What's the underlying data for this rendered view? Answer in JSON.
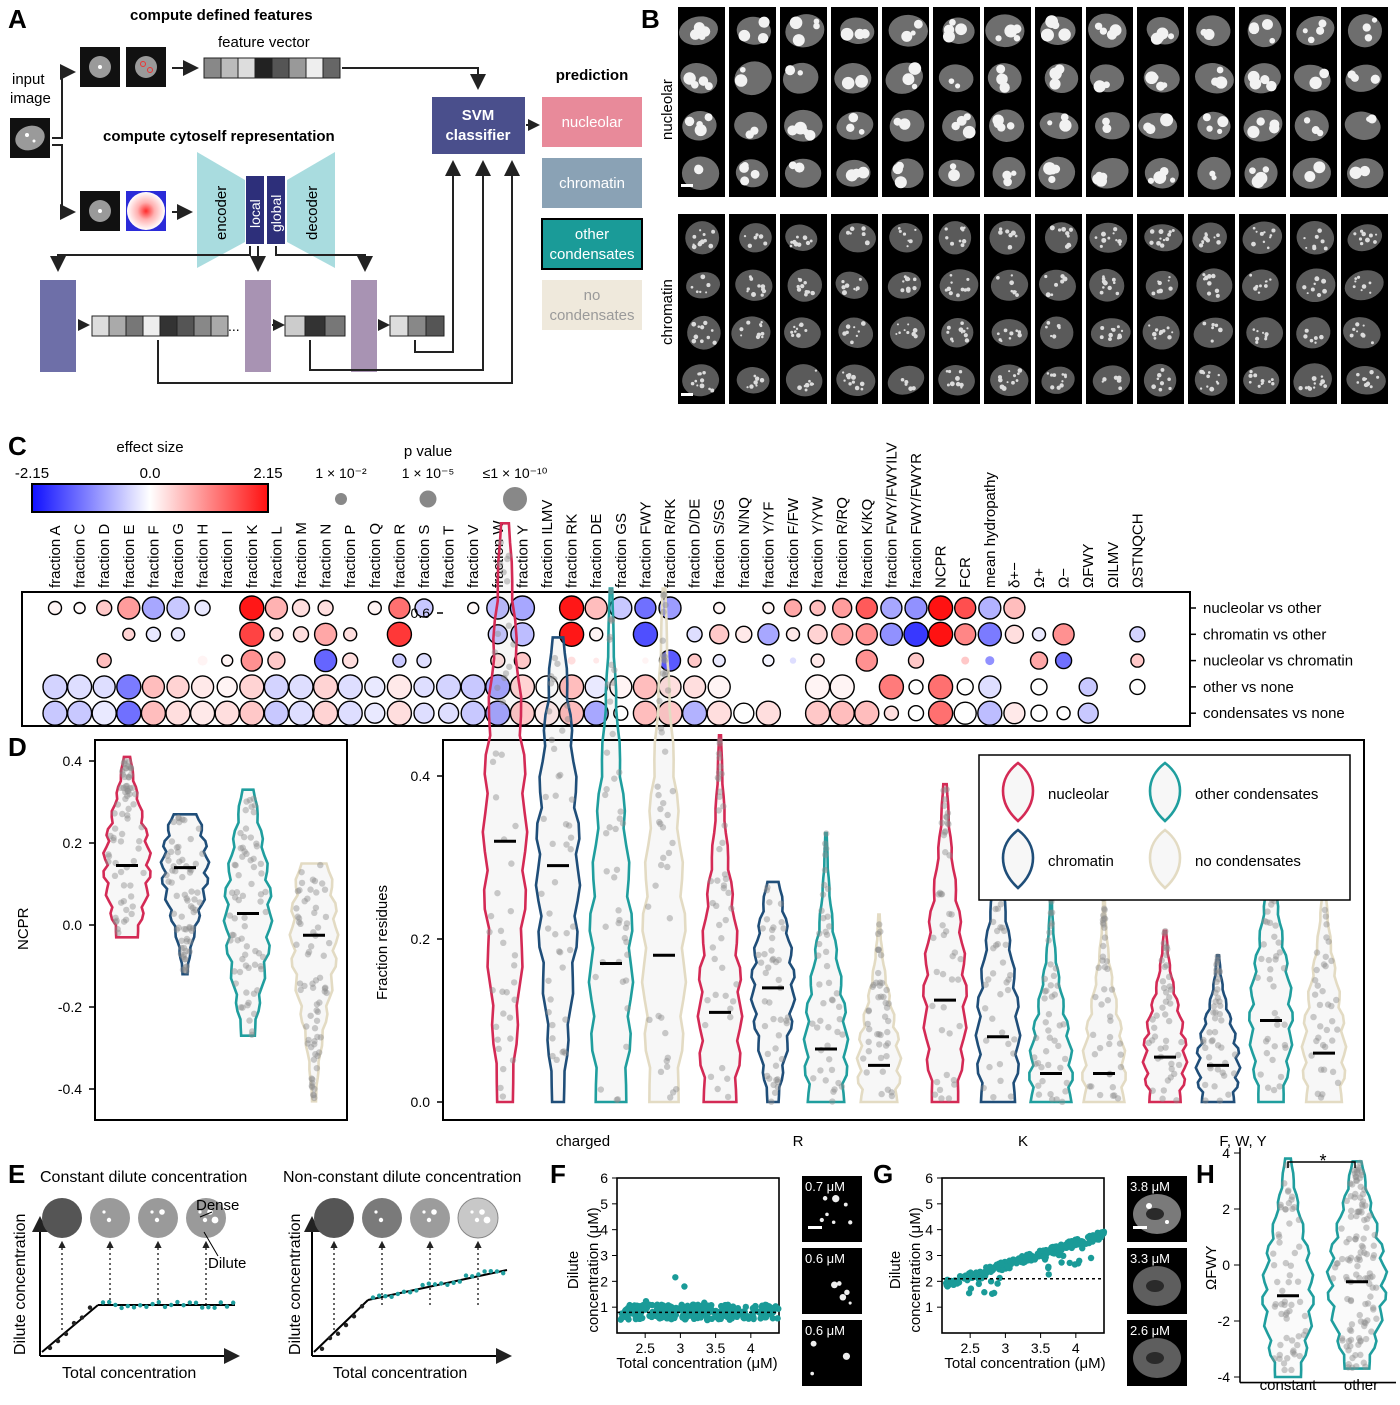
{
  "panel_labels": [
    "A",
    "B",
    "C",
    "D",
    "E",
    "F",
    "G",
    "H"
  ],
  "panelA": {
    "input_label_1": "input",
    "input_label_2": "image",
    "defined_title": "compute defined features",
    "feature_vector": "feature vector",
    "cytoself_title": "compute cytoself representation",
    "encoder": "encoder",
    "local": "local",
    "global": "global",
    "decoder": "decoder",
    "svm_1": "SVM",
    "svm_2": "classifier",
    "ellipsis": "...",
    "prediction_title": "prediction",
    "predictions": [
      {
        "label_1": "nucleolar",
        "label_2": "",
        "fill": "#e88a9a",
        "text": "#ffffff"
      },
      {
        "label_1": "chromatin",
        "label_2": "",
        "fill": "#8aa2b5",
        "text": "#ffffff"
      },
      {
        "label_1": "other",
        "label_2": "condensates",
        "fill": "#1a9b98",
        "text": "#ffffff"
      },
      {
        "label_1": "no",
        "label_2": "condensates",
        "fill": "#efe9dc",
        "text": "#9a9a9a"
      }
    ],
    "colors": {
      "svm": "#4a4f8c",
      "encoder": "#a9dcdf",
      "latent": "#2d2f7a",
      "block1": "#6e6fa8",
      "block2": "#a893b3"
    }
  },
  "panelB": {
    "row_labels": [
      "nucleolar",
      "chromatin"
    ]
  },
  "panelC": {
    "effect_title": "effect size",
    "effect_ticks": [
      "-2.15",
      "0.0",
      "2.15"
    ],
    "p_title": "p value",
    "p_legend": [
      "1 × 10⁻²",
      "1 × 10⁻⁵",
      "≤1 × 10⁻¹⁰"
    ],
    "columns": [
      "fraction A",
      "fraction C",
      "fraction D",
      "fraction E",
      "fraction F",
      "fraction G",
      "fraction H",
      "fraction I",
      "fraction K",
      "fraction L",
      "fraction M",
      "fraction N",
      "fraction P",
      "fraction Q",
      "fraction R",
      "fraction S",
      "fraction T",
      "fraction V",
      "fraction W",
      "fraction Y",
      "fraction ILMV",
      "fraction RK",
      "fraction DE",
      "fraction GS",
      "fraction FWY",
      "fraction R/RK",
      "fraction D/DE",
      "fraction S/SG",
      "fraction N/NQ",
      "fraction Y/YF",
      "fraction F/FW",
      "fraction Y/YW",
      "fraction R/RQ",
      "fraction K/KQ",
      "fraction FWY/FWYILV",
      "fraction FWY/FWYR",
      "NCPR",
      "FCR",
      "mean hydropathy",
      "δ+−",
      "Ω+",
      "Ω−",
      "ΩFWY",
      "ΩILMV",
      "ΩSTNQCH"
    ],
    "rows": [
      "nucleolar vs other",
      "chromatin vs other",
      "nucleolar vs chromatin",
      "other vs none",
      "condensates vs none"
    ],
    "effects": [
      [
        0.1,
        0.05,
        0.5,
        0.9,
        -0.8,
        -0.5,
        -0.2,
        0,
        2.1,
        0.7,
        0.3,
        0.3,
        -0.1,
        0.1,
        1.3,
        -0.5,
        0,
        0.05,
        -0.6,
        -0.8,
        0,
        2.1,
        0.6,
        -0.5,
        -1.3,
        -0.9,
        0,
        0.1,
        0,
        0.1,
        0.8,
        0.6,
        0.9,
        1.5,
        -0.8,
        -1.0,
        2.15,
        1.6,
        -0.7,
        0.6,
        0,
        0,
        0,
        0,
        0
      ],
      [
        0,
        0,
        0,
        0.4,
        -0.2,
        -0.2,
        0,
        0,
        1.7,
        0.3,
        0.3,
        0.8,
        0.3,
        0,
        1.8,
        0,
        0,
        0,
        -0.5,
        -0.6,
        0,
        2.1,
        0.1,
        0,
        -1.6,
        0,
        -0.3,
        0.5,
        0.2,
        -0.8,
        0.2,
        0.4,
        0.8,
        1.0,
        -1.0,
        -1.8,
        2.15,
        1.1,
        -1.2,
        0.3,
        -0.2,
        1.0,
        0,
        0,
        -0.4
      ],
      [
        0,
        0,
        0.6,
        0,
        0,
        0,
        0.1,
        0.1,
        1.0,
        0.5,
        0,
        -1.4,
        0.3,
        0,
        -0.5,
        -0.3,
        0,
        0,
        0.3,
        0.5,
        0,
        0.3,
        0.2,
        0,
        0.1,
        -1.5,
        0.5,
        -0.2,
        0,
        -0.1,
        -0.3,
        0.2,
        0,
        1.0,
        0,
        0.5,
        0,
        0.5,
        -1.0,
        0,
        0.8,
        -1.3,
        0,
        0,
        0.5
      ],
      [
        -0.4,
        -0.3,
        -0.3,
        -1.2,
        0.6,
        0.4,
        0.2,
        0.1,
        0.4,
        -0.4,
        -0.3,
        0.4,
        -0.3,
        -0.2,
        0.2,
        -0.3,
        -0.4,
        -0.5,
        -0.8,
        0.4,
        0,
        0.6,
        -0.2,
        0.1,
        0.6,
        0.3,
        0.3,
        0.1,
        0,
        0,
        0,
        0.1,
        0.1,
        0.2,
        1.2,
        0,
        1.3,
        0,
        -0.3,
        0,
        0,
        0,
        -0.5,
        0,
        0
      ],
      [
        -0.5,
        -0.5,
        -0.2,
        -1.3,
        0.6,
        0.3,
        0.2,
        0.3,
        0.5,
        -0.5,
        -0.3,
        0.4,
        -0.3,
        -0.2,
        0.3,
        -0.3,
        -0.3,
        -0.5,
        -0.8,
        0.5,
        0.2,
        0.6,
        -0.8,
        0,
        0.6,
        0.5,
        -0.7,
        0.3,
        0,
        0.3,
        0,
        0.5,
        0.6,
        0.6,
        0.3,
        0,
        1.3,
        0,
        -0.6,
        0.2,
        0,
        0,
        -0.5,
        0,
        0
      ]
    ],
    "sizes": [
      [
        0.45,
        0.35,
        0.55,
        0.9,
        0.9,
        0.9,
        0.55,
        0,
        1,
        0.9,
        0.65,
        0.55,
        0,
        0.45,
        0.85,
        0.7,
        0,
        0.35,
        0.9,
        1,
        0,
        1,
        0.9,
        0.9,
        0.85,
        0.9,
        0,
        0.35,
        0,
        0.35,
        0.65,
        0.55,
        0.75,
        0.85,
        0.85,
        0.9,
        1,
        0.85,
        0.9,
        0.85,
        0,
        0,
        0,
        0,
        0
      ],
      [
        0,
        0,
        0,
        0.4,
        0.5,
        0.45,
        0,
        0,
        1,
        0.45,
        0.55,
        0.9,
        0.45,
        0,
        1,
        0,
        0,
        0,
        0.75,
        0.95,
        0,
        1,
        0.45,
        0.15,
        1,
        0,
        0.55,
        0.75,
        0.6,
        0.85,
        0.45,
        0.75,
        0.85,
        0.85,
        0.9,
        1,
        1,
        0.85,
        0.95,
        0.7,
        0.45,
        0.85,
        0,
        0,
        0.55
      ],
      [
        0.12,
        0,
        0.5,
        0,
        0.12,
        0,
        0.3,
        0.35,
        0.85,
        0.65,
        0,
        0.9,
        0.55,
        0,
        0.45,
        0.5,
        0,
        0,
        0.5,
        0.6,
        0,
        0.2,
        0.1,
        0,
        0.12,
        0.85,
        0.45,
        0.4,
        0,
        0.35,
        0.12,
        0.45,
        0,
        0.85,
        0,
        0.55,
        0,
        0.2,
        0.25,
        0,
        0.65,
        0.6,
        0,
        0,
        0.45
      ],
      [
        1,
        1,
        0.9,
        1,
        0.9,
        0.9,
        0.9,
        0.8,
        1,
        1,
        1,
        1,
        1,
        0.8,
        1,
        0.8,
        1,
        1,
        1,
        1,
        0.9,
        1,
        0.9,
        0.9,
        1,
        0.9,
        0.9,
        0.9,
        0,
        0,
        0,
        1,
        1,
        0,
        1,
        0.5,
        1,
        0.6,
        0.9,
        0,
        0.6,
        0,
        0.7,
        0,
        0.55
      ],
      [
        1,
        1,
        1,
        1,
        1,
        1,
        1,
        1,
        1,
        1,
        1,
        1,
        1,
        0.8,
        1,
        0.8,
        0.8,
        1,
        1,
        1,
        1,
        1,
        1,
        0.5,
        1,
        1,
        1,
        1,
        0.8,
        1,
        0,
        1,
        1,
        1,
        0.5,
        0.55,
        1,
        0.9,
        1,
        0.85,
        0.6,
        0.45,
        0.8,
        0,
        0
      ]
    ]
  },
  "panelD": {
    "left_ylabel": "NCPR",
    "left_yticks": [
      -0.4,
      -0.2,
      0.0,
      0.2,
      0.4
    ],
    "right_ylabel": "Fraction residues",
    "right_yticks": [
      0.0,
      0.2,
      0.4,
      0.6
    ],
    "groups": [
      "charged",
      "R",
      "K",
      "F, W, Y"
    ],
    "legend": [
      "nucleolar",
      "other condensates",
      "chromatin",
      "no condensates"
    ]
  },
  "panelE": {
    "title_left": "Constant dilute concentration",
    "title_right": "Non-constant dilute concentration",
    "dense": "Dense",
    "dilute": "Dilute",
    "ylabel": "Dilute concentration",
    "xlabel": "Total concentration"
  },
  "panelF": {
    "ylabel_1": "Dilute",
    "ylabel_2": "concentration (μM)",
    "xlabel": "Total concentration (μM)",
    "yticks": [
      1,
      2,
      3,
      4,
      5,
      6
    ],
    "xticks": [
      "2.5",
      "3",
      "3.5",
      "4"
    ],
    "image_labels": [
      "0.7 μM",
      "0.6 μM",
      "0.6 μM"
    ]
  },
  "panelG": {
    "ylabel_1": "Dilute",
    "ylabel_2": "concentration (μM)",
    "xlabel": "Total concentration (μM)",
    "yticks": [
      1,
      2,
      3,
      4,
      5,
      6
    ],
    "xticks": [
      "2.5",
      "3",
      "3.5",
      "4"
    ],
    "image_labels": [
      "3.8 μM",
      "3.3 μM",
      "2.6 μM"
    ]
  },
  "panelH": {
    "ylabel": "ΩFWY",
    "yticks": [
      -4,
      -2,
      0,
      2,
      4
    ],
    "categories": [
      "constant",
      "other"
    ],
    "significance": "*",
    "medians": [
      -1.1,
      -0.6
    ]
  },
  "chart_data": [
    {
      "type": "heatmap",
      "title": "",
      "x": [
        "fraction A",
        "fraction C",
        "fraction D",
        "fraction E",
        "fraction F",
        "fraction G",
        "fraction H",
        "fraction I",
        "fraction K",
        "fraction L",
        "fraction M",
        "fraction N",
        "fraction P",
        "fraction Q",
        "fraction R",
        "fraction S",
        "fraction T",
        "fraction V",
        "fraction W",
        "fraction Y",
        "fraction ILMV",
        "fraction RK",
        "fraction DE",
        "fraction GS",
        "fraction FWY",
        "fraction R/RK",
        "fraction D/DE",
        "fraction S/SG",
        "fraction N/NQ",
        "fraction Y/YF",
        "fraction F/FW",
        "fraction Y/YW",
        "fraction R/RQ",
        "fraction K/KQ",
        "fraction FWY/FWYILV",
        "fraction FWY/FWYR",
        "NCPR",
        "FCR",
        "mean hydropathy",
        "δ+−",
        "Ω+",
        "Ω−",
        "ΩFWY",
        "ΩILMV",
        "ΩSTNQCH"
      ],
      "y": [
        "nucleolar vs other",
        "chromatin vs other",
        "nucleolar vs chromatin",
        "other vs none",
        "condensates vs none"
      ],
      "color_range": [
        -2.15,
        2.15
      ]
    },
    {
      "type": "violin",
      "ylabel": "NCPR",
      "ylim": [
        -0.45,
        0.45
      ],
      "categories": [
        "nucleolar",
        "chromatin",
        "other condensates",
        "no condensates"
      ],
      "medians": [
        0.145,
        0.14,
        0.028,
        -0.025
      ],
      "mins": [
        -0.03,
        -0.12,
        -0.27,
        -0.43
      ],
      "maxs": [
        0.41,
        0.27,
        0.33,
        0.15
      ]
    },
    {
      "type": "violin",
      "ylabel": "Fraction residues",
      "ylim": [
        0,
        0.72
      ],
      "groups": [
        "charged",
        "R",
        "K",
        "F, W, Y"
      ],
      "series": [
        {
          "name": "nucleolar",
          "medians": [
            0.32,
            0.11,
            0.125,
            0.055
          ],
          "maxs": [
            0.71,
            0.45,
            0.39,
            0.21
          ]
        },
        {
          "name": "chromatin",
          "medians": [
            0.29,
            0.14,
            0.08,
            0.045
          ],
          "maxs": [
            0.57,
            0.27,
            0.35,
            0.18
          ]
        },
        {
          "name": "other condensates",
          "medians": [
            0.17,
            0.065,
            0.035,
            0.1
          ],
          "maxs": [
            0.63,
            0.33,
            0.27,
            0.3
          ]
        },
        {
          "name": "no condensates",
          "medians": [
            0.18,
            0.045,
            0.035,
            0.06
          ],
          "maxs": [
            0.63,
            0.23,
            0.27,
            0.29
          ]
        }
      ]
    },
    {
      "type": "scatter",
      "xlabel": "Total concentration (μM)",
      "ylabel": "Dilute concentration (μM)",
      "xlim": [
        2.1,
        4.4
      ],
      "ylim": [
        0,
        6
      ],
      "reference_y": 0.8,
      "trend": "constant near 0.8 μM"
    },
    {
      "type": "scatter",
      "xlabel": "Total concentration (μM)",
      "ylabel": "Dilute concentration (μM)",
      "xlim": [
        2.1,
        4.4
      ],
      "ylim": [
        0,
        6
      ],
      "reference_y": 2.1,
      "trend": "increasing from about 2.1 to 4.0 μM"
    },
    {
      "type": "violin",
      "ylabel": "ΩFWY",
      "ylim": [
        -4.2,
        4.2
      ],
      "categories": [
        "constant",
        "other"
      ],
      "medians": [
        -1.1,
        -0.6
      ]
    }
  ]
}
